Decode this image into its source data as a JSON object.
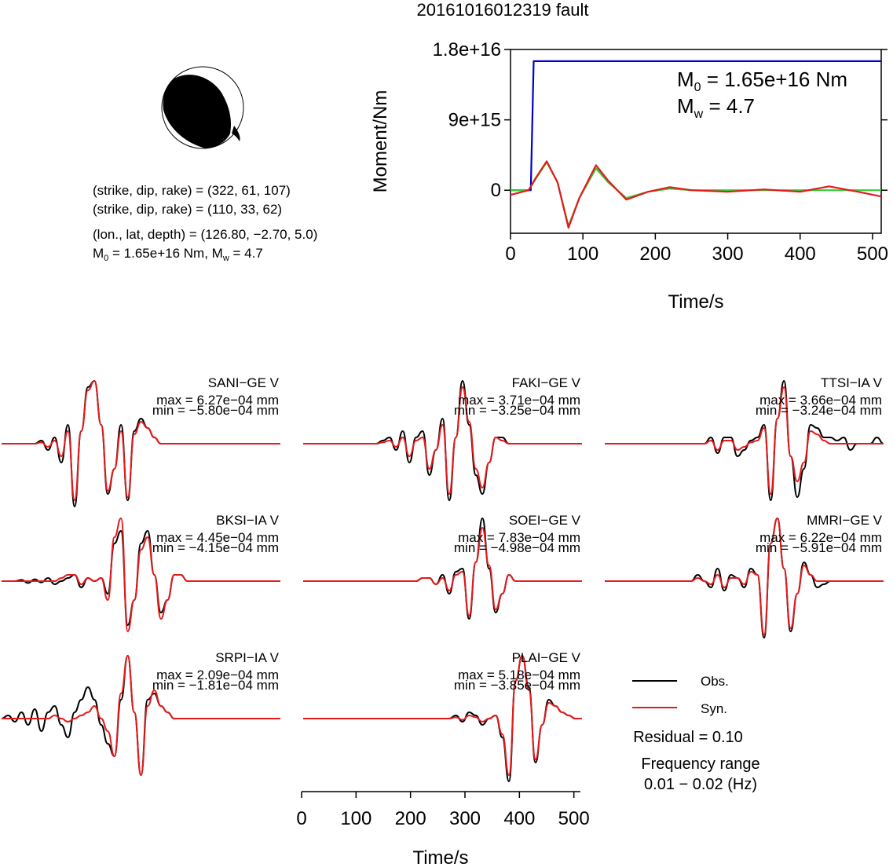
{
  "title": "20161016012319 fault",
  "mechanism": {
    "np1": "(strike, dip, rake) = (322, 61, 107)",
    "np2": "(strike, dip, rake) = (110, 33, 62)",
    "location": "(lon., lat, depth) = (126.80, −2.70, 5.0)",
    "m0_label": "M",
    "m0_sub": "0",
    "m0_rest": " = 1.65e+16 Nm, M",
    "mw_sub": "w",
    "mw_rest": " = 4.7"
  },
  "moment_text": {
    "m0_label": "M",
    "m0_sub": "0",
    "m0_rest": " = 1.65e+16 Nm",
    "mw_label": "M",
    "mw_sub": "w",
    "mw_rest": " = 4.7"
  },
  "legend": {
    "obs": "Obs.",
    "syn": "Syn.",
    "residual": "Residual = 0.10",
    "freq_label": "Frequency range",
    "freq_value": "0.01 − 0.02 (Hz)"
  },
  "colors": {
    "obs": "#000000",
    "syn": "#e41a1c",
    "moment": "#0000cc",
    "stf_green": "#33cc33",
    "beachball": "#000000"
  },
  "chart_data": [
    {
      "type": "line",
      "title": "",
      "xlabel": "Time/s",
      "ylabel": "Moment/Nm",
      "xlim": [
        0,
        512
      ],
      "ylim": [
        -5500000000000000.0,
        1.8e+16
      ],
      "xticks": [
        0,
        100,
        200,
        300,
        400,
        500
      ],
      "xtick_labels": [
        "0",
        "100",
        "200",
        "300",
        "400",
        "500"
      ],
      "yticks": [
        0,
        9000000000000000.0,
        1.8e+16
      ],
      "ytick_labels": [
        "0",
        "9e+15",
        "1.8e+16"
      ],
      "series": [
        {
          "name": "",
          "color": "#0000cc",
          "x": [
            0,
            28,
            32,
            512
          ],
          "y": [
            0,
            0,
            1.65e+16,
            1.65e+16
          ]
        },
        {
          "name": "",
          "color": "#33cc33",
          "x": [
            0,
            25,
            35,
            50,
            65,
            80,
            95,
            118,
            135,
            160,
            190,
            220,
            250,
            300,
            350,
            400,
            450,
            512
          ],
          "y": [
            0,
            0,
            1500000000000000.0,
            3600000000000000.0,
            1000000000000000.0,
            -4600000000000000.0,
            -1000000000000000.0,
            2800000000000000.0,
            1000000000000000.0,
            -1000000000000000.0,
            -200000000000000.0,
            200000000000000.0,
            0,
            0,
            0,
            0,
            0,
            0
          ]
        },
        {
          "name": "",
          "color": "#e41a1c",
          "x": [
            0,
            25,
            35,
            50,
            65,
            80,
            95,
            118,
            135,
            160,
            190,
            220,
            250,
            300,
            350,
            400,
            440,
            480,
            512
          ],
          "y": [
            -600000000000000.0,
            0,
            1600000000000000.0,
            3700000000000000.0,
            1000000000000000.0,
            -4800000000000000.0,
            -1000000000000000.0,
            3200000000000000.0,
            1200000000000000.0,
            -1200000000000000.0,
            -200000000000000.0,
            400000000000000.0,
            0,
            -200000000000000.0,
            100000000000000.0,
            -200000000000000.0,
            500000000000000.0,
            -200000000000000.0,
            -800000000000000.0
          ]
        }
      ]
    },
    {
      "type": "line",
      "title": "",
      "xlabel": "Time/s",
      "ylabel": "",
      "xlim": [
        0,
        512
      ],
      "xticks": [
        0,
        100,
        200,
        300,
        400,
        500
      ],
      "xtick_labels": [
        "0",
        "100",
        "200",
        "300",
        "400",
        "500"
      ],
      "stations": [
        {
          "name": "SANI−GE V",
          "max": "max = 6.27e−04 mm",
          "min": "min = −5.80e−04 mm",
          "obs": [
            0,
            0,
            0,
            0,
            0,
            0,
            0.05,
            -0.1,
            0.1,
            -0.3,
            0.3,
            -1.0,
            0.2,
            0.9,
            1.0,
            0.3,
            -0.8,
            -0.4,
            0.3,
            -0.9,
            0.2,
            0.4,
            0.25,
            0.1,
            0,
            0,
            0,
            0,
            0,
            0,
            0,
            0,
            0,
            0,
            0,
            0,
            0,
            0,
            0,
            0,
            0,
            0,
            0
          ],
          "syn": [
            0,
            0,
            0,
            0,
            0,
            0,
            0.02,
            -0.05,
            0.05,
            -0.2,
            0.2,
            -0.9,
            0.2,
            0.85,
            1.0,
            0.3,
            -0.75,
            -0.4,
            0.2,
            -0.85,
            0.15,
            0.35,
            0.25,
            0.1,
            0,
            0,
            0,
            0,
            0,
            0,
            0,
            0,
            0,
            0,
            0,
            0,
            0,
            0,
            0,
            0,
            0,
            0,
            0
          ]
        },
        {
          "name": "FAKI−GE V",
          "max": "max = 3.71e−04 mm",
          "min": "min = −3.25e−04 mm",
          "obs": [
            0,
            0,
            0,
            0,
            0,
            0,
            0,
            0,
            0,
            0,
            0,
            0,
            0.05,
            0.1,
            -0.1,
            0.2,
            -0.3,
            0.1,
            0.2,
            -0.5,
            -0.1,
            0.4,
            -0.9,
            0.1,
            1.0,
            0.3,
            -0.5,
            -0.8,
            -0.3,
            0.1,
            0.1,
            0,
            0,
            0,
            0,
            0,
            0,
            0,
            0,
            0,
            0,
            0,
            0
          ],
          "syn": [
            0,
            0,
            0,
            0,
            0,
            0,
            0,
            0,
            0,
            0,
            0,
            0,
            0.02,
            0.05,
            -0.05,
            0.1,
            -0.2,
            0.05,
            0.1,
            -0.4,
            -0.1,
            0.3,
            -0.8,
            0.1,
            0.9,
            0.35,
            -0.4,
            -0.7,
            -0.3,
            0.1,
            0.05,
            0,
            0,
            0,
            0,
            0,
            0,
            0,
            0,
            0,
            0,
            0,
            0
          ]
        },
        {
          "name": "TTSI−IA V",
          "max": "max = 3.66e−04 mm",
          "min": "min = −3.24e−04 mm",
          "obs": [
            0,
            0,
            0,
            0,
            0,
            0,
            0,
            0,
            0,
            0,
            0,
            0,
            0,
            0,
            0,
            0,
            0.1,
            -0.15,
            0.1,
            0.1,
            -0.2,
            -0.1,
            0.05,
            0.1,
            0.3,
            -0.9,
            0.4,
            1.0,
            -0.2,
            -0.85,
            -0.4,
            0.3,
            0.25,
            0.1,
            0.1,
            0.05,
            0.1,
            -0.1,
            0,
            0,
            0,
            0.1,
            0
          ],
          "syn": [
            0,
            0,
            0,
            0,
            0,
            0,
            0,
            0,
            0,
            0,
            0,
            0,
            0,
            0,
            0,
            0,
            0.05,
            -0.1,
            0.05,
            0.05,
            -0.1,
            -0.05,
            0.02,
            0.05,
            0.25,
            -0.8,
            0.4,
            0.9,
            -0.2,
            -0.6,
            -0.3,
            0.2,
            0.15,
            0.05,
            0,
            0,
            0,
            0,
            0,
            0,
            0,
            0,
            0
          ]
        },
        {
          "name": "BKSI−IA V",
          "max": "max = 4.45e−04 mm",
          "min": "min = −4.15e−04 mm",
          "obs": [
            0,
            0,
            0,
            0.02,
            -0.03,
            0.03,
            -0.02,
            0.05,
            -0.05,
            0,
            0.05,
            0.1,
            -0.1,
            0.05,
            0,
            0.05,
            -0.2,
            0.6,
            0.8,
            -0.7,
            -0.3,
            0.6,
            0.8,
            0.1,
            -0.5,
            -0.3,
            0.1,
            0.1,
            0,
            0,
            0,
            0,
            0,
            0,
            0,
            0,
            0,
            0,
            0,
            0,
            0,
            0,
            0
          ],
          "syn": [
            0,
            0,
            0,
            0,
            0,
            0,
            0,
            0,
            0,
            0.05,
            0.1,
            0.1,
            -0.05,
            0.05,
            0,
            0.05,
            -0.3,
            0.7,
            1.0,
            -0.8,
            -0.3,
            0.5,
            0.7,
            0.1,
            -0.6,
            -0.3,
            0.1,
            0.1,
            0,
            0,
            0,
            0,
            0,
            0,
            0,
            0,
            0,
            0,
            0,
            0,
            0,
            0,
            0
          ]
        },
        {
          "name": "SOEI−GE V",
          "max": "max = 7.83e−04 mm",
          "min": "min = −4.98e−04 mm",
          "obs": [
            0,
            0,
            0,
            0,
            0,
            0,
            0,
            0,
            0,
            0,
            0,
            0,
            0,
            0,
            0,
            0,
            0,
            0,
            0.05,
            0.05,
            -0.05,
            0.1,
            -0.2,
            0.15,
            0.2,
            -0.6,
            0.3,
            1.0,
            0.2,
            -0.5,
            -0.2,
            0.1,
            0,
            0,
            0,
            0,
            0,
            0,
            0,
            0,
            0,
            0,
            0
          ],
          "syn": [
            0,
            0,
            0,
            0,
            0,
            0,
            0,
            0,
            0,
            0,
            0,
            0,
            0,
            0,
            0,
            0,
            0,
            0,
            0.05,
            0.05,
            -0.05,
            0.05,
            -0.15,
            0.1,
            0.15,
            -0.55,
            0.3,
            0.85,
            0.25,
            -0.45,
            -0.2,
            0.1,
            0,
            0,
            0,
            0,
            0,
            0,
            0,
            0,
            0,
            0,
            0
          ]
        },
        {
          "name": "MMRI−GE V",
          "max": "max = 6.22e−04 mm",
          "min": "min = −5.91e−04 mm",
          "obs": [
            0,
            0,
            0,
            0,
            0,
            0,
            0,
            0,
            0,
            0,
            0,
            0,
            0,
            0,
            0.1,
            0,
            -0.1,
            0.2,
            -0.15,
            0.1,
            0.05,
            -0.1,
            0.2,
            0.1,
            -0.9,
            0.6,
            1.0,
            0.2,
            -0.8,
            -0.2,
            0.3,
            0.1,
            -0.1,
            -0.05,
            0,
            0,
            0,
            0,
            0,
            0,
            0,
            0,
            0
          ],
          "syn": [
            0,
            0,
            0,
            0,
            0,
            0,
            0,
            0,
            0,
            0,
            0,
            0,
            0,
            0,
            0.05,
            0,
            -0.05,
            0.1,
            -0.1,
            0.05,
            0.05,
            -0.05,
            0.15,
            0.1,
            -0.85,
            0.6,
            1.0,
            0.2,
            -0.75,
            -0.2,
            0.25,
            0.1,
            0,
            0,
            0,
            0,
            0,
            0,
            0,
            0,
            0,
            0,
            0
          ]
        },
        {
          "name": "SRPI−IA V",
          "max": "max = 2.09e−04 mm",
          "min": "min = −1.81e−04 mm",
          "obs": [
            0,
            0.05,
            -0.05,
            0.1,
            -0.1,
            0.15,
            -0.2,
            0.1,
            0.2,
            -0.1,
            -0.3,
            0.1,
            0.3,
            0.5,
            0.3,
            -0.1,
            -0.4,
            -0.6,
            0.3,
            1.0,
            0.1,
            -0.9,
            0.3,
            0.4,
            0.2,
            0.1,
            0,
            0,
            0,
            0,
            0,
            0,
            0,
            0,
            0,
            0,
            0,
            0,
            0,
            0,
            0,
            0,
            0
          ],
          "syn": [
            0,
            0,
            0,
            0,
            0,
            0,
            0,
            0,
            0.05,
            0,
            -0.05,
            0,
            0.05,
            0.1,
            0.2,
            0,
            -0.2,
            -0.6,
            0.4,
            1.0,
            0.1,
            -0.9,
            0.2,
            0.45,
            0.2,
            0.1,
            0,
            0,
            0,
            0,
            0,
            0,
            0,
            0,
            0,
            0,
            0,
            0,
            0,
            0,
            0,
            0,
            0
          ]
        },
        {
          "name": "PLAI−GE V",
          "max": "max = 5.18e−04 mm",
          "min": "min = −3.85e−04 mm",
          "obs": [
            0,
            0,
            0,
            0,
            0,
            0,
            0,
            0,
            0,
            0,
            0,
            0,
            0,
            0,
            0,
            0,
            0,
            0,
            0,
            0,
            0,
            0,
            0,
            0.05,
            -0.05,
            0.1,
            0.05,
            -0.1,
            0,
            0.05,
            -0.3,
            -1.0,
            0.6,
            1.0,
            0.5,
            -0.7,
            -0.1,
            0.3,
            0.2,
            0.1,
            0.05,
            0,
            0
          ],
          "syn": [
            0,
            0,
            0,
            0,
            0,
            0,
            0,
            0,
            0,
            0,
            0,
            0,
            0,
            0,
            0,
            0,
            0,
            0,
            0,
            0,
            0,
            0,
            0,
            0.02,
            -0.02,
            0.05,
            0.02,
            -0.05,
            0,
            0.05,
            -0.25,
            -0.9,
            0.6,
            1.0,
            0.45,
            -0.65,
            -0.1,
            0.25,
            0.2,
            0.1,
            0.05,
            0,
            0
          ]
        }
      ]
    }
  ]
}
